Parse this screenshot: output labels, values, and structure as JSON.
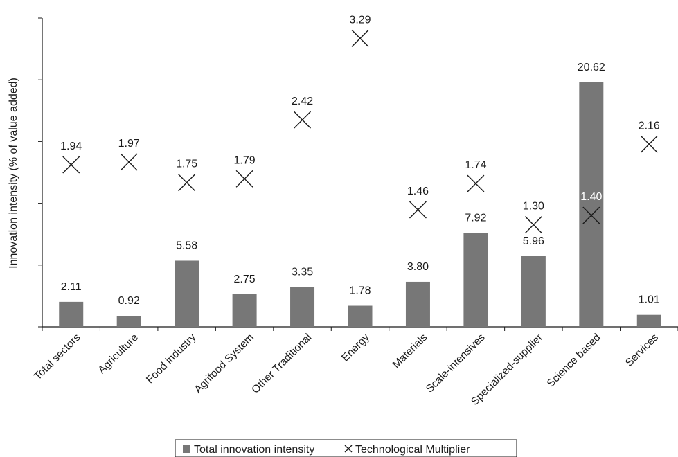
{
  "chart_data": {
    "type": "bar",
    "ylabel": "Innovation intensity (% of value added)",
    "categories": [
      "Total sectors",
      "Agriculture",
      "Food industry",
      "Agrifood System",
      "Other Traditional",
      "Energy",
      "Materials",
      "Scale-intensives",
      "Specialized-supplier",
      "Science based",
      "Services"
    ],
    "series": [
      {
        "name": "Total innovation intensity",
        "kind": "bar",
        "color": "#777777",
        "values": [
          2.11,
          0.92,
          5.58,
          2.75,
          3.35,
          1.78,
          3.8,
          7.92,
          5.96,
          20.62,
          1.01
        ],
        "labels": [
          "2.11",
          "0.92",
          "5.58",
          "2.75",
          "3.35",
          "1.78",
          "3.80",
          "7.92",
          "5.96",
          "20.62",
          "1.01"
        ]
      },
      {
        "name": "Technological Multiplier",
        "kind": "marker-x",
        "color": "#1a1a1a",
        "values": [
          1.94,
          1.97,
          1.75,
          1.79,
          2.42,
          3.29,
          1.46,
          1.74,
          1.3,
          1.4,
          2.16
        ],
        "labels": [
          "1.94",
          "1.97",
          "1.75",
          "1.79",
          "2.42",
          "3.29",
          "1.46",
          "1.74",
          "1.30",
          "1.40",
          "2.16"
        ]
      }
    ],
    "primary_axis_ticks": 5,
    "tick_labels_shown": false,
    "grid": false,
    "legend": {
      "position": "bottom-center"
    }
  }
}
